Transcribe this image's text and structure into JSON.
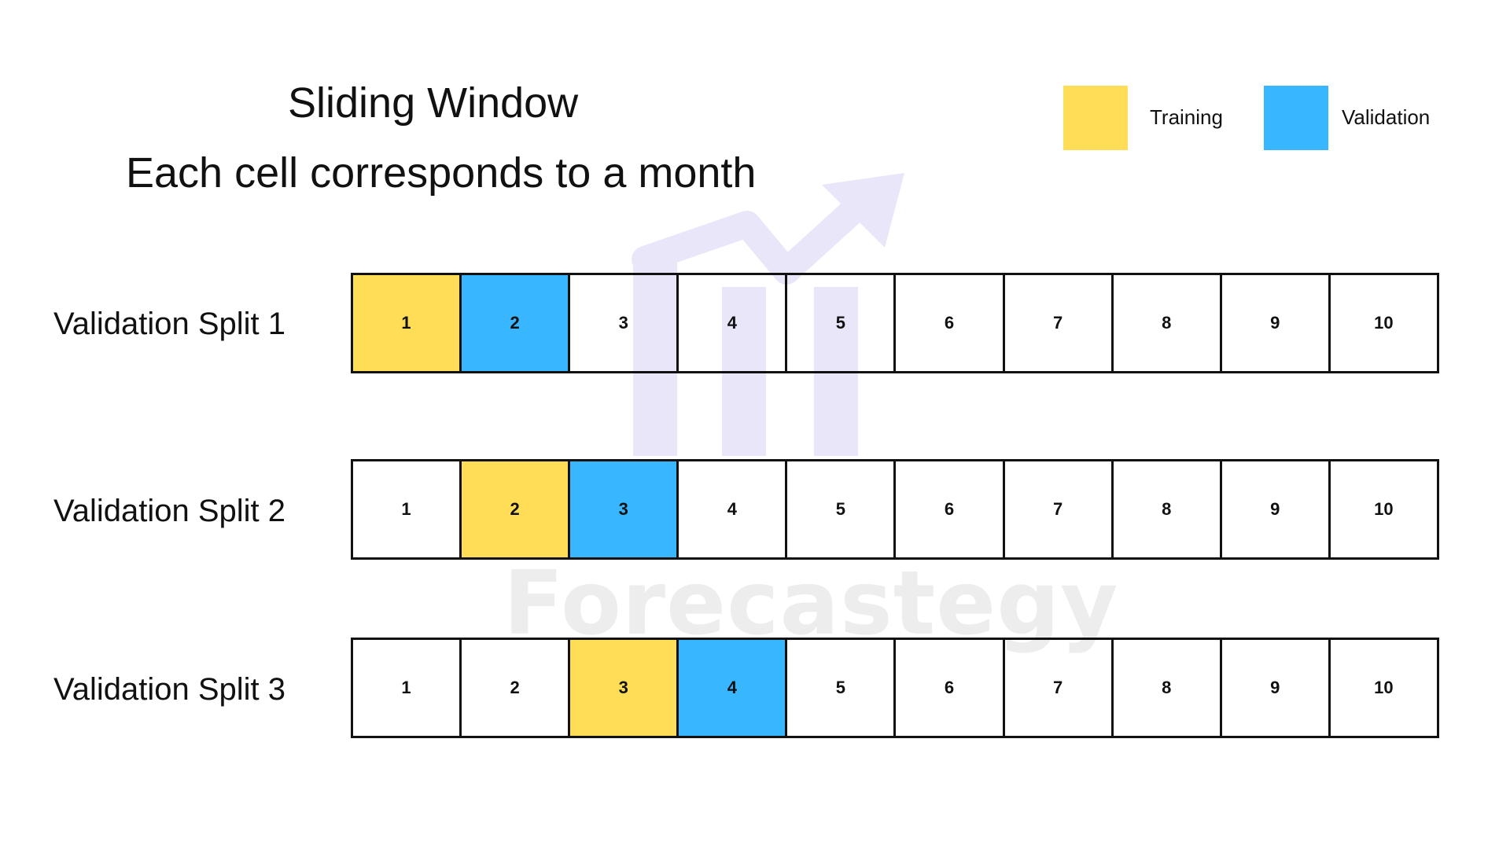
{
  "title": "Sliding Window",
  "subtitle": "Each cell corresponds to a month",
  "watermark": "Forecastegy",
  "colors": {
    "training": "#FFDD57",
    "validation": "#38B6FF",
    "watermark": "#EAE6FA"
  },
  "legend": [
    {
      "label": "Training",
      "color": "#FFDD57"
    },
    {
      "label": "Validation",
      "color": "#38B6FF"
    }
  ],
  "splits": [
    {
      "label": "Validation Split 1",
      "cells": [
        "1",
        "2",
        "3",
        "4",
        "5",
        "6",
        "7",
        "8",
        "9",
        "10"
      ],
      "training": [
        1
      ],
      "validation": [
        2
      ]
    },
    {
      "label": "Validation Split 2",
      "cells": [
        "1",
        "2",
        "3",
        "4",
        "5",
        "6",
        "7",
        "8",
        "9",
        "10"
      ],
      "training": [
        2
      ],
      "validation": [
        3
      ]
    },
    {
      "label": "Validation Split 3",
      "cells": [
        "1",
        "2",
        "3",
        "4",
        "5",
        "6",
        "7",
        "8",
        "9",
        "10"
      ],
      "training": [
        3
      ],
      "validation": [
        4
      ]
    }
  ]
}
